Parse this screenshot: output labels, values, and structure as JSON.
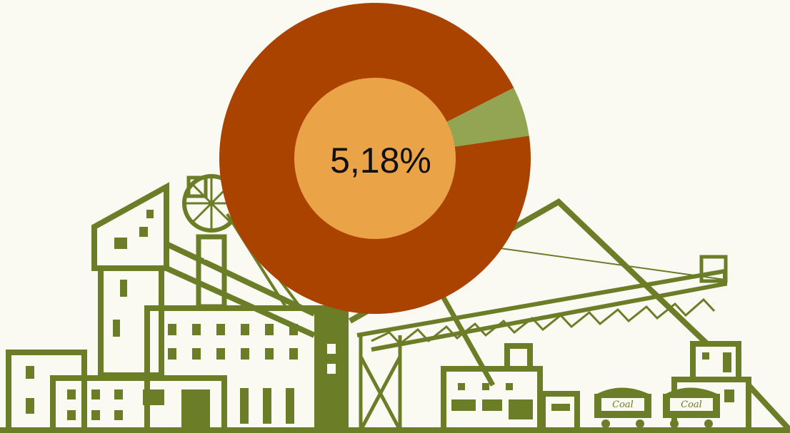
{
  "colors": {
    "background": "#fafaf3",
    "industry": "#6b7d27",
    "industry_fill": "#ffffff",
    "ring_main": "#ab4300",
    "ring_highlight": "#93a452",
    "center": "#eba348"
  },
  "labels": {
    "wagon_text": "Coal"
  },
  "chart_data": {
    "type": "pie",
    "style": "donut",
    "center_label": "5,18%",
    "slices": [
      {
        "value": 5.18,
        "color": "#93a452"
      },
      {
        "value": 94.82,
        "color": "#ab4300"
      }
    ]
  }
}
